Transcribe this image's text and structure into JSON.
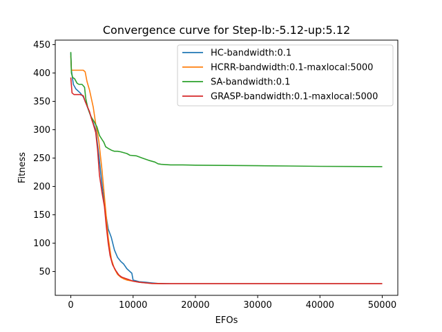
{
  "chart_data": {
    "type": "line",
    "title": "Convergence curve for Step-lb:-5.12-up:5.12",
    "xlabel": "EFOs",
    "ylabel": "Fitness",
    "xlim": [
      -2500,
      52500
    ],
    "ylim": [
      8,
      458
    ],
    "xticks": [
      0,
      10000,
      20000,
      30000,
      40000,
      50000
    ],
    "yticks": [
      50,
      100,
      150,
      200,
      250,
      300,
      350,
      400,
      450
    ],
    "grid": false,
    "legend_position": "top-right",
    "series": [
      {
        "name": "HC-bandwidth:0.1",
        "color": "#1f77b4",
        "points": [
          [
            0,
            435
          ],
          [
            100,
            405
          ],
          [
            400,
            380
          ],
          [
            800,
            372
          ],
          [
            1500,
            365
          ],
          [
            2000,
            358
          ],
          [
            2500,
            345
          ],
          [
            3000,
            330
          ],
          [
            3500,
            315
          ],
          [
            4000,
            300
          ],
          [
            4500,
            255
          ],
          [
            5000,
            205
          ],
          [
            5500,
            160
          ],
          [
            6000,
            125
          ],
          [
            6500,
            110
          ],
          [
            7000,
            88
          ],
          [
            7500,
            75
          ],
          [
            8000,
            68
          ],
          [
            8500,
            63
          ],
          [
            9000,
            55
          ],
          [
            9500,
            50
          ],
          [
            9800,
            47
          ],
          [
            10000,
            35
          ],
          [
            11000,
            32
          ],
          [
            12000,
            31
          ],
          [
            13000,
            30
          ],
          [
            14000,
            29
          ],
          [
            16000,
            28.5
          ],
          [
            20000,
            28.5
          ],
          [
            50000,
            28.5
          ]
        ]
      },
      {
        "name": "HCRR-bandwidth:0.1-maxlocal:5000",
        "color": "#ff7f0e",
        "points": [
          [
            0,
            430
          ],
          [
            100,
            405
          ],
          [
            500,
            405
          ],
          [
            1000,
            405
          ],
          [
            2000,
            405
          ],
          [
            2300,
            402
          ],
          [
            2600,
            385
          ],
          [
            3000,
            370
          ],
          [
            3300,
            355
          ],
          [
            3600,
            340
          ],
          [
            4000,
            310
          ],
          [
            4500,
            280
          ],
          [
            5000,
            230
          ],
          [
            5500,
            170
          ],
          [
            6000,
            110
          ],
          [
            6500,
            72
          ],
          [
            7000,
            55
          ],
          [
            7500,
            45
          ],
          [
            8000,
            40
          ],
          [
            8500,
            37
          ],
          [
            9000,
            35
          ],
          [
            9500,
            34
          ],
          [
            10000,
            33
          ],
          [
            11000,
            31
          ],
          [
            12000,
            30
          ],
          [
            13000,
            29
          ],
          [
            15000,
            28.5
          ],
          [
            20000,
            28.5
          ],
          [
            50000,
            28.5
          ]
        ]
      },
      {
        "name": "SA-bandwidth:0.1",
        "color": "#2ca02c",
        "points": [
          [
            0,
            437
          ],
          [
            100,
            400
          ],
          [
            300,
            392
          ],
          [
            600,
            390
          ],
          [
            1000,
            382
          ],
          [
            1300,
            380
          ],
          [
            1800,
            380
          ],
          [
            2200,
            375
          ],
          [
            2400,
            355
          ],
          [
            2700,
            340
          ],
          [
            3000,
            330
          ],
          [
            3300,
            322
          ],
          [
            3700,
            315
          ],
          [
            4200,
            305
          ],
          [
            4600,
            290
          ],
          [
            5000,
            283
          ],
          [
            5300,
            278
          ],
          [
            5600,
            270
          ],
          [
            6000,
            267
          ],
          [
            6500,
            264
          ],
          [
            7000,
            262
          ],
          [
            7500,
            262
          ],
          [
            8000,
            261
          ],
          [
            9000,
            258
          ],
          [
            9500,
            255
          ],
          [
            10500,
            254
          ],
          [
            11500,
            250
          ],
          [
            12500,
            246
          ],
          [
            13500,
            243
          ],
          [
            14000,
            240
          ],
          [
            14500,
            239
          ],
          [
            16000,
            238
          ],
          [
            18000,
            238
          ],
          [
            20000,
            237.5
          ],
          [
            25000,
            237
          ],
          [
            30000,
            236.5
          ],
          [
            35000,
            236
          ],
          [
            40000,
            235.5
          ],
          [
            45000,
            235.2
          ],
          [
            50000,
            235
          ]
        ]
      },
      {
        "name": "GRASP-bandwidth:0.1-maxlocal:5000",
        "color": "#d62728",
        "points": [
          [
            0,
            392
          ],
          [
            200,
            365
          ],
          [
            500,
            362
          ],
          [
            1000,
            362
          ],
          [
            1500,
            362
          ],
          [
            2000,
            360
          ],
          [
            2300,
            350
          ],
          [
            2600,
            342
          ],
          [
            3000,
            332
          ],
          [
            3300,
            320
          ],
          [
            3600,
            310
          ],
          [
            4000,
            295
          ],
          [
            4300,
            265
          ],
          [
            4600,
            220
          ],
          [
            5000,
            190
          ],
          [
            5400,
            165
          ],
          [
            5700,
            130
          ],
          [
            6000,
            100
          ],
          [
            6300,
            78
          ],
          [
            6700,
            62
          ],
          [
            7200,
            52
          ],
          [
            7700,
            44
          ],
          [
            8200,
            40
          ],
          [
            9000,
            37
          ],
          [
            10000,
            33
          ],
          [
            11000,
            31
          ],
          [
            12000,
            30
          ],
          [
            13000,
            29
          ],
          [
            15000,
            28.5
          ],
          [
            20000,
            28.5
          ],
          [
            50000,
            28.5
          ]
        ]
      }
    ]
  }
}
